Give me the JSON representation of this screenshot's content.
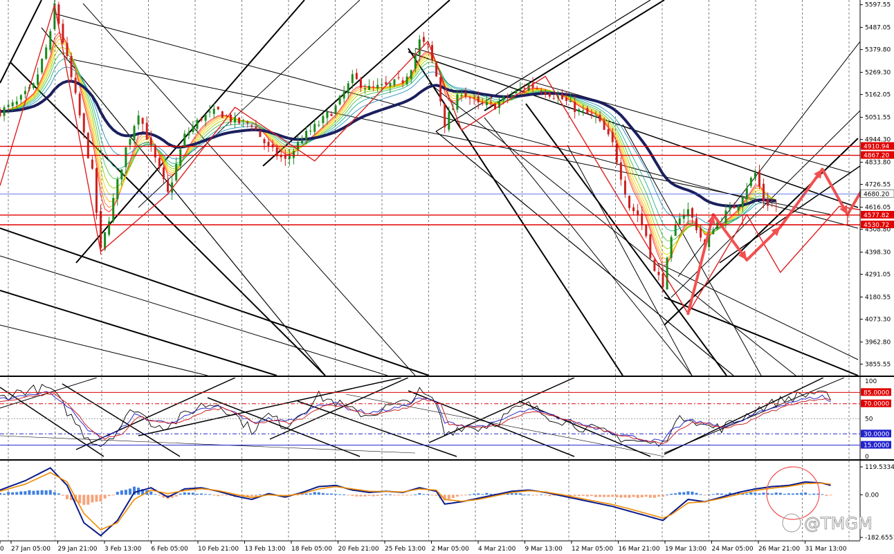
{
  "chart_data": [
    {
      "type": "candlestick",
      "panel": "price",
      "ylim": [
        3800,
        5620
      ],
      "y_ticks": [
        "5597.55",
        "5487.05",
        "5379.80",
        "5269.30",
        "5162.05",
        "5051.55",
        "4944.30",
        "4833.80",
        "4726.55",
        "4616.05",
        "4508.80",
        "4398.30",
        "4291.05",
        "4180.55",
        "4073.30",
        "3962.80",
        "3855.55"
      ],
      "x_ticks": [
        "0",
        "27 Jan 05:00",
        "29 Jan 21:00",
        "3 Feb 13:00",
        "6 Feb 05:00",
        "10 Feb 21:00",
        "13 Feb 13:00",
        "18 Feb 05:00",
        "20 Feb 21:00",
        "25 Feb 13:00",
        "2 Mar 05:00",
        "4 Mar 21:00",
        "9 Mar 13:00",
        "12 Mar 05:00",
        "16 Mar 21:00",
        "19 Mar 13:00",
        "24 Mar 05:00",
        "26 Mar 21:00",
        "31 Mar 13:00"
      ],
      "grid": "vertical dashed",
      "close_path": [
        [
          0,
          5080
        ],
        [
          4,
          5120
        ],
        [
          8,
          5200
        ],
        [
          12,
          5450
        ],
        [
          13,
          5597
        ],
        [
          15,
          5420
        ],
        [
          18,
          5150
        ],
        [
          22,
          4780
        ],
        [
          24,
          4400
        ],
        [
          27,
          4650
        ],
        [
          30,
          4900
        ],
        [
          33,
          5080
        ],
        [
          36,
          4900
        ],
        [
          40,
          4680
        ],
        [
          44,
          4960
        ],
        [
          48,
          5050
        ],
        [
          52,
          5080
        ],
        [
          56,
          5030
        ],
        [
          60,
          5020
        ],
        [
          64,
          4900
        ],
        [
          68,
          4840
        ],
        [
          72,
          4950
        ],
        [
          76,
          5020
        ],
        [
          80,
          5100
        ],
        [
          84,
          5240
        ],
        [
          88,
          5190
        ],
        [
          92,
          5200
        ],
        [
          96,
          5230
        ],
        [
          98,
          5300
        ],
        [
          100,
          5420
        ],
        [
          102,
          5390
        ],
        [
          104,
          5250
        ],
        [
          106,
          5020
        ],
        [
          110,
          5180
        ],
        [
          114,
          5110
        ],
        [
          118,
          5110
        ],
        [
          122,
          5160
        ],
        [
          126,
          5210
        ],
        [
          130,
          5180
        ],
        [
          134,
          5140
        ],
        [
          138,
          5080
        ],
        [
          142,
          5050
        ],
        [
          146,
          4920
        ],
        [
          148,
          4770
        ],
        [
          150,
          4620
        ],
        [
          152,
          4580
        ],
        [
          154,
          4480
        ],
        [
          156,
          4300
        ],
        [
          158,
          4250
        ],
        [
          160,
          4450
        ],
        [
          162,
          4580
        ],
        [
          164,
          4600
        ],
        [
          166,
          4520
        ],
        [
          168,
          4420
        ],
        [
          170,
          4520
        ],
        [
          172,
          4570
        ],
        [
          174,
          4600
        ],
        [
          176,
          4640
        ],
        [
          178,
          4720
        ],
        [
          180,
          4780
        ],
        [
          182,
          4650
        ],
        [
          184,
          4620
        ]
      ],
      "h_lines": [
        {
          "value": 4910.94,
          "label": "4910.94",
          "color": "#e00000"
        },
        {
          "value": 4867.2,
          "label": "4867.20",
          "color": "#e00000"
        },
        {
          "value": 4680.2,
          "label": "4680.20",
          "color": "#3355dd"
        },
        {
          "value": 4577.82,
          "label": "4577.82",
          "color": "#e00000"
        },
        {
          "value": 4530.72,
          "label": "4530.72",
          "color": "#e00000"
        }
      ],
      "zigzag": [
        [
          0,
          4720
        ],
        [
          13,
          5597
        ],
        [
          24,
          4400
        ],
        [
          40,
          4680
        ],
        [
          56,
          5100
        ],
        [
          75,
          4840
        ],
        [
          102,
          5420
        ],
        [
          110,
          4990
        ],
        [
          130,
          5250
        ],
        [
          164,
          4100
        ],
        [
          178,
          4580
        ],
        [
          186,
          4300
        ],
        [
          200,
          4620
        ],
        [
          212,
          4580
        ],
        [
          218,
          4800
        ]
      ],
      "forecast_arrows": [
        [
          164,
          4100
        ],
        [
          170,
          4580
        ],
        [
          178,
          4360
        ],
        [
          186,
          4520
        ],
        [
          196,
          4800
        ],
        [
          202,
          4580
        ],
        [
          210,
          4860
        ]
      ],
      "box": {
        "x0": 177,
        "x1": 202,
        "y0": 4530.72,
        "y1": 4577.82
      }
    },
    {
      "type": "line",
      "panel": "stochastic",
      "ylim": [
        0,
        100
      ],
      "y_ticks": [
        "100",
        "50",
        "0"
      ],
      "levels": [
        {
          "value": 85,
          "label": "85.0000",
          "color": "#e00000"
        },
        {
          "value": 70,
          "label": "70.0000",
          "color": "#e00000"
        },
        {
          "value": 30,
          "label": "30.0000",
          "color": "#2222cc"
        },
        {
          "value": 15,
          "label": "15.0000",
          "color": "#2222cc"
        }
      ],
      "main": [
        [
          0,
          78
        ],
        [
          6,
          88
        ],
        [
          12,
          90
        ],
        [
          16,
          60
        ],
        [
          20,
          30
        ],
        [
          24,
          15
        ],
        [
          28,
          35
        ],
        [
          32,
          65
        ],
        [
          36,
          45
        ],
        [
          40,
          40
        ],
        [
          44,
          55
        ],
        [
          48,
          68
        ],
        [
          52,
          70
        ],
        [
          56,
          55
        ],
        [
          60,
          35
        ],
        [
          64,
          55
        ],
        [
          68,
          40
        ],
        [
          72,
          60
        ],
        [
          76,
          80
        ],
        [
          80,
          72
        ],
        [
          84,
          60
        ],
        [
          88,
          55
        ],
        [
          92,
          65
        ],
        [
          96,
          70
        ],
        [
          100,
          85
        ],
        [
          104,
          70
        ],
        [
          106,
          30
        ],
        [
          110,
          40
        ],
        [
          114,
          38
        ],
        [
          118,
          45
        ],
        [
          122,
          60
        ],
        [
          126,
          68
        ],
        [
          130,
          55
        ],
        [
          134,
          48
        ],
        [
          138,
          40
        ],
        [
          142,
          35
        ],
        [
          146,
          28
        ],
        [
          150,
          22
        ],
        [
          154,
          18
        ],
        [
          158,
          15
        ],
        [
          160,
          40
        ],
        [
          164,
          55
        ],
        [
          168,
          40
        ],
        [
          172,
          38
        ],
        [
          176,
          48
        ],
        [
          180,
          62
        ],
        [
          184,
          70
        ],
        [
          188,
          78
        ],
        [
          192,
          82
        ],
        [
          196,
          88
        ],
        [
          198,
          70
        ]
      ],
      "signal": [
        [
          0,
          75
        ],
        [
          6,
          82
        ],
        [
          12,
          85
        ],
        [
          16,
          68
        ],
        [
          20,
          40
        ],
        [
          24,
          25
        ],
        [
          28,
          32
        ],
        [
          32,
          55
        ],
        [
          36,
          48
        ],
        [
          40,
          45
        ],
        [
          44,
          52
        ],
        [
          48,
          62
        ],
        [
          52,
          66
        ],
        [
          56,
          58
        ],
        [
          60,
          45
        ],
        [
          64,
          50
        ],
        [
          68,
          46
        ],
        [
          72,
          55
        ],
        [
          76,
          70
        ],
        [
          80,
          70
        ],
        [
          84,
          62
        ],
        [
          88,
          58
        ],
        [
          92,
          62
        ],
        [
          96,
          66
        ],
        [
          100,
          78
        ],
        [
          104,
          72
        ],
        [
          106,
          45
        ],
        [
          110,
          42
        ],
        [
          114,
          40
        ],
        [
          118,
          44
        ],
        [
          122,
          55
        ],
        [
          126,
          62
        ],
        [
          130,
          57
        ],
        [
          134,
          50
        ],
        [
          138,
          44
        ],
        [
          142,
          38
        ],
        [
          146,
          32
        ],
        [
          150,
          27
        ],
        [
          154,
          22
        ],
        [
          158,
          20
        ],
        [
          160,
          33
        ],
        [
          164,
          48
        ],
        [
          168,
          44
        ],
        [
          172,
          40
        ],
        [
          176,
          45
        ],
        [
          180,
          56
        ],
        [
          184,
          64
        ],
        [
          188,
          72
        ],
        [
          192,
          76
        ],
        [
          196,
          80
        ],
        [
          198,
          72
        ]
      ]
    },
    {
      "type": "histogram",
      "panel": "macd",
      "ylim": [
        -182.6551,
        119.5334
      ],
      "y_ticks": [
        "119.5334",
        "0.00",
        "-182.6551"
      ],
      "macd": [
        [
          0,
          20
        ],
        [
          6,
          60
        ],
        [
          12,
          115
        ],
        [
          16,
          40
        ],
        [
          20,
          -120
        ],
        [
          24,
          -175
        ],
        [
          28,
          -110
        ],
        [
          32,
          10
        ],
        [
          36,
          30
        ],
        [
          40,
          -10
        ],
        [
          44,
          25
        ],
        [
          48,
          30
        ],
        [
          52,
          15
        ],
        [
          56,
          -5
        ],
        [
          60,
          -20
        ],
        [
          64,
          5
        ],
        [
          68,
          -10
        ],
        [
          72,
          10
        ],
        [
          76,
          35
        ],
        [
          80,
          40
        ],
        [
          84,
          20
        ],
        [
          88,
          10
        ],
        [
          92,
          15
        ],
        [
          96,
          10
        ],
        [
          100,
          30
        ],
        [
          104,
          15
        ],
        [
          106,
          -40
        ],
        [
          110,
          -30
        ],
        [
          114,
          -15
        ],
        [
          118,
          0
        ],
        [
          122,
          15
        ],
        [
          126,
          20
        ],
        [
          130,
          10
        ],
        [
          134,
          -5
        ],
        [
          138,
          -20
        ],
        [
          142,
          -35
        ],
        [
          146,
          -50
        ],
        [
          150,
          -70
        ],
        [
          154,
          -90
        ],
        [
          158,
          -110
        ],
        [
          160,
          -80
        ],
        [
          164,
          -20
        ],
        [
          168,
          -30
        ],
        [
          172,
          -10
        ],
        [
          176,
          10
        ],
        [
          180,
          25
        ],
        [
          184,
          35
        ],
        [
          188,
          40
        ],
        [
          192,
          55
        ],
        [
          196,
          50
        ],
        [
          198,
          40
        ]
      ],
      "signal": [
        [
          0,
          15
        ],
        [
          6,
          45
        ],
        [
          12,
          95
        ],
        [
          16,
          55
        ],
        [
          20,
          -80
        ],
        [
          24,
          -150
        ],
        [
          28,
          -120
        ],
        [
          32,
          -20
        ],
        [
          36,
          20
        ],
        [
          40,
          5
        ],
        [
          44,
          18
        ],
        [
          48,
          26
        ],
        [
          52,
          18
        ],
        [
          56,
          2
        ],
        [
          60,
          -12
        ],
        [
          64,
          0
        ],
        [
          68,
          -5
        ],
        [
          72,
          5
        ],
        [
          76,
          25
        ],
        [
          80,
          35
        ],
        [
          84,
          25
        ],
        [
          88,
          15
        ],
        [
          92,
          14
        ],
        [
          96,
          12
        ],
        [
          100,
          25
        ],
        [
          104,
          20
        ],
        [
          106,
          -20
        ],
        [
          110,
          -28
        ],
        [
          114,
          -20
        ],
        [
          118,
          -5
        ],
        [
          122,
          10
        ],
        [
          126,
          17
        ],
        [
          130,
          12
        ],
        [
          134,
          0
        ],
        [
          138,
          -14
        ],
        [
          142,
          -28
        ],
        [
          146,
          -42
        ],
        [
          150,
          -60
        ],
        [
          154,
          -80
        ],
        [
          158,
          -100
        ],
        [
          160,
          -85
        ],
        [
          164,
          -35
        ],
        [
          168,
          -30
        ],
        [
          172,
          -15
        ],
        [
          176,
          2
        ],
        [
          180,
          18
        ],
        [
          184,
          28
        ],
        [
          188,
          36
        ],
        [
          192,
          48
        ],
        [
          196,
          50
        ],
        [
          198,
          45
        ]
      ],
      "highlight": "last bars circled"
    }
  ],
  "watermark": "@TMGM",
  "colors": {
    "bull": "#1a8a1a",
    "bear": "#cc2020",
    "ema_slow": "#1b1f5e",
    "zigzag": "#dd2020",
    "forecast": "#f25050",
    "hist_pos": "#3f7fe0",
    "hist_neg": "#f5a47a",
    "macd": "#0a1a8a",
    "macd_signal": "#f08a00",
    "grid": "#444444"
  }
}
